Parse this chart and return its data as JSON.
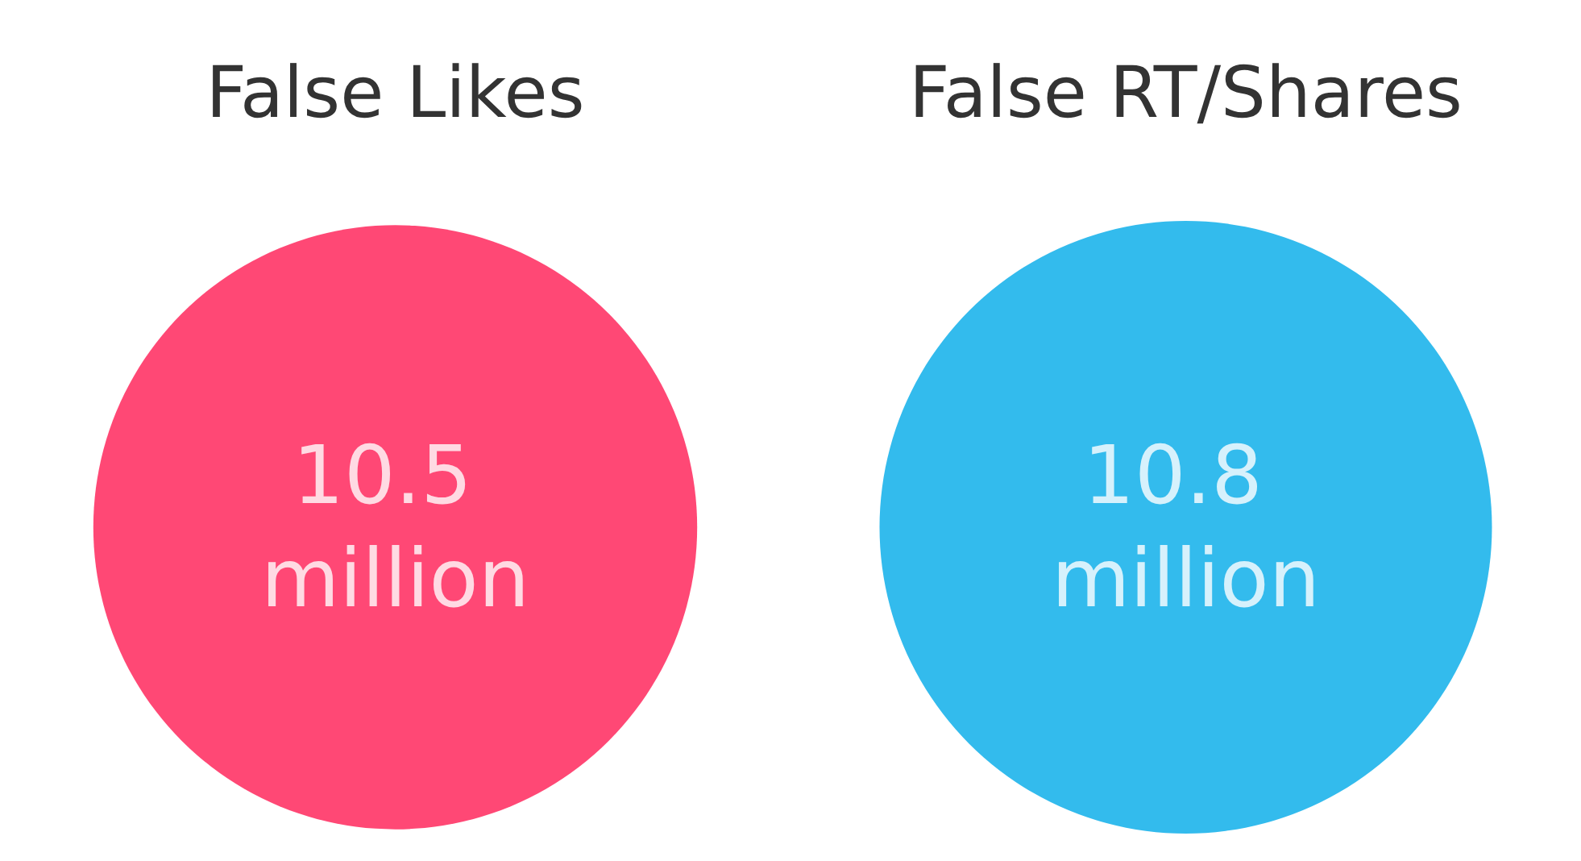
{
  "chart_data": {
    "type": "other",
    "categories": [
      "False Likes",
      "False RT/Shares"
    ],
    "values": [
      10.5,
      10.8
    ],
    "value_labels": [
      "10.5 million",
      "10.8 million"
    ],
    "colors": [
      "#ff1a52",
      "#00aae9"
    ]
  }
}
